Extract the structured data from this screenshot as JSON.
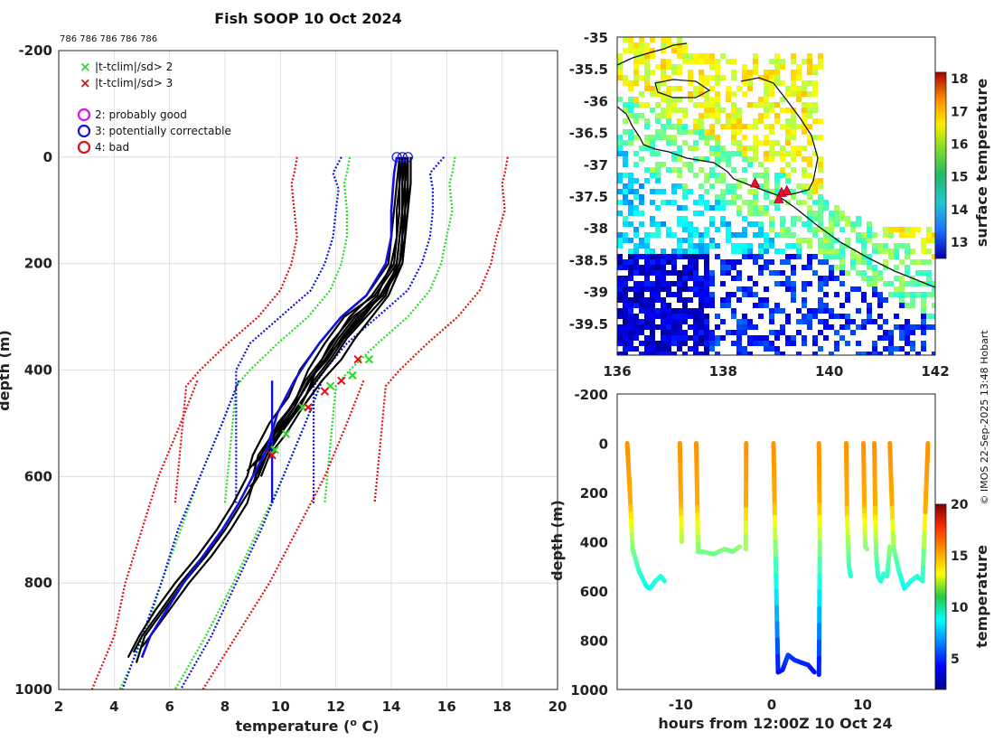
{
  "chart_data": [
    {
      "id": "profile",
      "type": "line",
      "title": "Fish SOOP 10 Oct 2024",
      "subtitle": "786 786 786 786 786",
      "xlabel": "temperature (",
      "xlabel_sup": "o",
      "xlabel_end": " C)",
      "ylabel": "depth (m)",
      "xlim": [
        2,
        20
      ],
      "ylim": [
        -200,
        1000
      ],
      "y_reversed": true,
      "grid": true,
      "xticks": [
        2,
        4,
        6,
        8,
        10,
        12,
        14,
        16,
        18,
        20
      ],
      "yticks": [
        -200,
        0,
        200,
        400,
        600,
        800,
        1000
      ],
      "colors": {
        "green": "#22dd22",
        "red": "#dd1111",
        "blue": "#1111dd",
        "magenta": "#dd11dd",
        "black": "#000000"
      },
      "legend": {
        "placement": "top-left",
        "flags": [
          {
            "marker": "x",
            "color": "#22dd22",
            "label": "|t-tclim|/sd> 2"
          },
          {
            "marker": "x",
            "color": "#dd1111",
            "label": "|t-tclim|/sd> 3"
          }
        ],
        "quality": [
          {
            "marker": "o",
            "color": "#dd11dd",
            "label": "2: probably good"
          },
          {
            "marker": "o",
            "color": "#1111dd",
            "label": "3: potentially correctable"
          },
          {
            "marker": "o",
            "color": "#dd1111",
            "label": "4: bad"
          }
        ]
      },
      "climatology": {
        "depth_upper": [
          0,
          30,
          50,
          100,
          150,
          200,
          250,
          300,
          350,
          400,
          430,
          650
        ],
        "mean_upper": [
          14.4,
          14.3,
          14.2,
          14.3,
          14.2,
          14.0,
          13.6,
          12.8,
          11.7,
          10.7,
          10.2,
          9.8
        ],
        "offsets_upper": [
          {
            "k": -2,
            "color": "red",
            "dy": 10
          },
          {
            "k": -1,
            "color": "green",
            "dy": 10
          },
          {
            "k": 1,
            "color": "green",
            "dy": 16
          },
          {
            "k": 2,
            "color": "red",
            "dy": 16
          }
        ],
        "depth_lower": [
          420,
          500,
          600,
          700,
          800,
          900,
          1000
        ],
        "mean_lower": [
          10.0,
          9.4,
          8.6,
          7.8,
          7.0,
          6.2,
          5.2
        ],
        "sd_lower": [
          1.5,
          1.5,
          1.5,
          1.4,
          1.3,
          1.1,
          1.0
        ],
        "std_profile": [
          {
            "color": "blue",
            "depth": [
              0,
              30,
              60,
              100,
              150,
              200,
              250,
              300,
              350,
              400,
              430,
              650
            ],
            "temp": [
              12.2,
              11.9,
              12.1,
              12.0,
              11.9,
              11.6,
              11.1,
              10.0,
              8.9,
              8.4,
              8.4,
              8.4
            ]
          },
          {
            "color": "blue",
            "depth": [
              0,
              30,
              60,
              100,
              150,
              200,
              250,
              300,
              350,
              400,
              430,
              650
            ],
            "temp": [
              15.9,
              15.4,
              15.5,
              15.5,
              15.4,
              15.1,
              14.6,
              13.5,
              12.4,
              11.6,
              11.2,
              11.2
            ]
          },
          {
            "color": "blue",
            "depth": [
              420,
              500,
              600,
              700,
              800,
              900,
              1000
            ],
            "temp": [
              8.5,
              7.9,
              7.1,
              6.3,
              5.7,
              5.0,
              4.3
            ]
          },
          {
            "color": "blue",
            "depth": [
              420,
              500,
              600,
              700,
              800,
              900,
              1000
            ],
            "temp": [
              11.5,
              10.9,
              10.1,
              9.3,
              8.4,
              7.5,
              6.4
            ]
          }
        ]
      },
      "profiles": [
        {
          "name": "drop 1",
          "color": "black",
          "depth": [
            0,
            50,
            100,
            150,
            200,
            260,
            300,
            350,
            400,
            450,
            500,
            560,
            600,
            650,
            700,
            750,
            800,
            850,
            900,
            950
          ],
          "temp": [
            14.6,
            14.6,
            14.6,
            14.5,
            14.4,
            13.7,
            12.6,
            11.8,
            11.3,
            10.9,
            10.2,
            9.5,
            9.2,
            8.6,
            8.0,
            7.3,
            6.5,
            5.8,
            5.1,
            4.8
          ]
        },
        {
          "name": "drop 2",
          "color": "black",
          "depth": [
            0,
            50,
            100,
            150,
            200,
            260,
            300,
            350,
            400,
            450,
            500,
            560,
            600,
            650,
            700,
            750,
            800,
            850,
            900,
            930
          ],
          "temp": [
            14.4,
            14.4,
            14.4,
            14.3,
            14.2,
            13.4,
            12.3,
            11.6,
            11.0,
            10.6,
            10.0,
            9.2,
            9.0,
            8.5,
            7.9,
            7.2,
            6.4,
            5.7,
            5.0,
            4.7
          ]
        },
        {
          "name": "drop 3",
          "color": "black",
          "depth": [
            0,
            50,
            100,
            150,
            200,
            260,
            300,
            350,
            400,
            450,
            500,
            560,
            600,
            650,
            700,
            750,
            800,
            850,
            900,
            920
          ],
          "temp": [
            14.7,
            14.7,
            14.6,
            14.5,
            14.3,
            13.6,
            12.9,
            12.1,
            11.3,
            10.7,
            9.9,
            9.4,
            9.1,
            8.8,
            8.2,
            7.5,
            6.7,
            6.0,
            5.3,
            5.0
          ]
        },
        {
          "name": "drop 4",
          "color": "black",
          "depth": [
            0,
            50,
            100,
            150,
            200,
            260,
            300,
            350,
            400,
            450,
            500,
            560,
            600,
            650,
            700,
            750,
            800,
            850,
            900,
            940
          ],
          "temp": [
            14.3,
            14.2,
            14.1,
            14.0,
            13.9,
            13.1,
            12.2,
            11.4,
            10.7,
            10.3,
            9.6,
            9.0,
            8.8,
            8.3,
            7.7,
            7.0,
            6.2,
            5.5,
            4.9,
            4.5
          ]
        },
        {
          "name": "drop 5",
          "color": "black",
          "depth": [
            0,
            50,
            100,
            150,
            200,
            260,
            300,
            340,
            380,
            420,
            470,
            520,
            560,
            600,
            620
          ],
          "temp": [
            14.5,
            14.5,
            14.4,
            14.4,
            14.3,
            13.6,
            13.0,
            12.3,
            11.8,
            11.2,
            10.7,
            10.0,
            9.5,
            9.2,
            8.9
          ]
        },
        {
          "name": "drop 6",
          "color": "black",
          "depth": [
            0,
            50,
            100,
            150,
            200,
            260,
            300,
            340,
            380,
            420,
            470,
            520,
            560,
            590
          ],
          "temp": [
            14.4,
            14.3,
            14.3,
            14.2,
            14.1,
            13.3,
            12.5,
            12.0,
            11.5,
            10.9,
            10.4,
            9.7,
            9.3,
            8.8
          ]
        },
        {
          "name": "drop 7",
          "color": "black",
          "depth": [
            0,
            50,
            100,
            150,
            200,
            260,
            300,
            340,
            380,
            420,
            470,
            520,
            560,
            600
          ],
          "temp": [
            14.6,
            14.6,
            14.5,
            14.5,
            14.4,
            13.9,
            13.3,
            12.7,
            12.2,
            11.5,
            10.8,
            10.2,
            9.6,
            9.3
          ]
        },
        {
          "name": "drop 8",
          "color": "black",
          "depth": [
            0,
            50,
            100,
            150,
            200,
            260,
            300,
            340,
            380,
            420,
            470,
            520,
            560,
            580
          ],
          "temp": [
            14.3,
            14.3,
            14.2,
            14.2,
            14.0,
            13.5,
            12.7,
            12.1,
            11.6,
            11.0,
            10.5,
            9.9,
            9.4,
            9.0
          ]
        },
        {
          "name": "drop 9",
          "color": "black",
          "depth": [
            0,
            50,
            100,
            150,
            200,
            260,
            300,
            340,
            380,
            420,
            470,
            520,
            560,
            600
          ],
          "temp": [
            14.5,
            14.4,
            14.4,
            14.3,
            14.2,
            13.8,
            13.1,
            12.4,
            11.9,
            11.3,
            10.6,
            10.0,
            9.5,
            9.1
          ]
        },
        {
          "name": "drop 10",
          "color": "black",
          "depth": [
            0,
            50,
            100,
            150,
            200,
            260,
            300,
            340,
            380,
            420,
            470,
            520,
            550,
            580
          ],
          "temp": [
            14.6,
            14.5,
            14.5,
            14.4,
            14.3,
            13.7,
            12.8,
            12.2,
            11.7,
            11.0,
            10.5,
            9.8,
            9.5,
            9.2
          ]
        },
        {
          "name": "flagged",
          "color": "blue",
          "depth": [
            0,
            30,
            100,
            150,
            200,
            260,
            300,
            350,
            380,
            420,
            480,
            550,
            600,
            650,
            700,
            750,
            800,
            850,
            900,
            940
          ],
          "temp": [
            14.2,
            14.1,
            14.0,
            14.0,
            13.8,
            13.1,
            12.2,
            11.4,
            11.0,
            10.5,
            9.9,
            9.5,
            9.0,
            8.5,
            7.9,
            7.2,
            6.5,
            5.9,
            5.3,
            5.0
          ]
        }
      ],
      "flag_markers": [
        {
          "color": "green",
          "points": [
            [
              13.2,
              380
            ],
            [
              12.6,
              410
            ],
            [
              11.8,
              430
            ],
            [
              10.8,
              470
            ],
            [
              10.2,
              520
            ],
            [
              9.8,
              550
            ]
          ]
        },
        {
          "color": "red",
          "points": [
            [
              12.8,
              380
            ],
            [
              12.2,
              420
            ],
            [
              11.6,
              440
            ],
            [
              11.0,
              470
            ],
            [
              9.7,
              560
            ]
          ]
        }
      ],
      "surface_circles": [
        [
          14.2,
          0
        ],
        [
          14.4,
          0
        ],
        [
          14.6,
          0
        ]
      ],
      "vertical_lines": [
        {
          "color": "blue",
          "temp": 9.7,
          "depth": [
            420,
            650
          ]
        }
      ]
    },
    {
      "id": "map",
      "type": "heatmap",
      "xlim": [
        136,
        142
      ],
      "ylim": [
        -40,
        -35
      ],
      "xticks": [
        136,
        138,
        140,
        142
      ],
      "yticks": [
        -35,
        -35.5,
        -36,
        -36.5,
        -37,
        -37.5,
        -38,
        -38.5,
        -39,
        -39.5
      ],
      "colorbar": {
        "label": "surface temperature",
        "ticks": [
          13,
          14,
          15,
          16,
          17,
          18
        ],
        "range": [
          12.5,
          18.2
        ]
      },
      "track_points": [
        [
          138.6,
          -37.3
        ],
        [
          139.1,
          -37.45
        ],
        [
          139.2,
          -37.42
        ],
        [
          139.05,
          -37.55
        ]
      ]
    },
    {
      "id": "section",
      "type": "scatter",
      "xlabel": "hours from 12:00Z 10 Oct 24",
      "ylabel": "depth (m)",
      "xlim": [
        -17,
        18
      ],
      "ylim": [
        -200,
        1000
      ],
      "y_reversed": true,
      "xticks": [
        -10,
        0,
        10
      ],
      "yticks": [
        -200,
        0,
        200,
        400,
        600,
        800,
        1000
      ],
      "colorbar": {
        "label": "temperature",
        "ticks": [
          5,
          10,
          15,
          20
        ],
        "range": [
          2,
          20
        ]
      },
      "casts": [
        {
          "t": [
            -15.9,
            -15.6,
            -15.3,
            -14.6,
            -13.8,
            -13.4,
            -12.8,
            -12.2,
            -11.8
          ],
          "d": [
            0,
            200,
            430,
            520,
            580,
            590,
            560,
            540,
            560
          ]
        },
        {
          "t": [
            -10.1,
            -10.0,
            -9.9
          ],
          "d": [
            0,
            200,
            400
          ]
        },
        {
          "t": [
            -8.3,
            -8.2,
            -8.1,
            -7.6,
            -6.4,
            -5.2,
            -4.3,
            -3.5
          ],
          "d": [
            0,
            200,
            440,
            440,
            450,
            430,
            440,
            420
          ]
        },
        {
          "t": [
            -2.8,
            -2.85
          ],
          "d": [
            0,
            430
          ]
        },
        {
          "t": [
            0.2,
            0.4,
            0.7,
            1.2,
            1.8,
            2.5,
            3.2,
            4.0,
            4.7
          ],
          "d": [
            0,
            400,
            930,
            920,
            860,
            880,
            890,
            900,
            930
          ]
        },
        {
          "t": [
            5.2,
            5.3,
            5.2
          ],
          "d": [
            0,
            400,
            940
          ]
        },
        {
          "t": [
            8.2,
            8.3,
            8.5,
            8.7
          ],
          "d": [
            0,
            300,
            500,
            540
          ]
        },
        {
          "t": [
            10.1,
            10.2,
            10.3,
            10.5
          ],
          "d": [
            0,
            250,
            420,
            430
          ]
        },
        {
          "t": [
            11.3,
            11.4,
            11.5,
            11.7,
            12.0,
            12.3,
            12.7,
            13.0
          ],
          "d": [
            0,
            300,
            450,
            540,
            560,
            530,
            540,
            420
          ]
        },
        {
          "t": [
            13.0,
            13.4,
            14.0,
            14.6,
            15.3,
            16.0,
            16.6,
            17.2
          ],
          "d": [
            0,
            420,
            520,
            590,
            560,
            540,
            560,
            0
          ]
        }
      ]
    }
  ],
  "credit": "© IMOS 22-Sep-2025 13:48 Hobart"
}
